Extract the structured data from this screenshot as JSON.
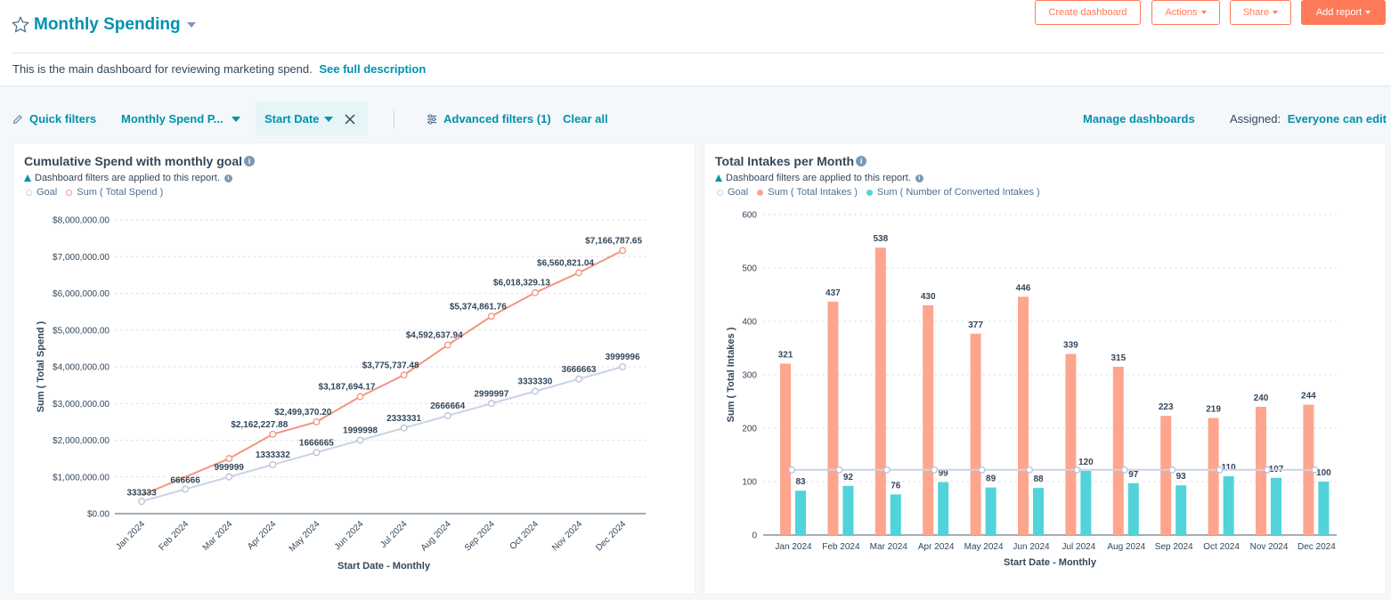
{
  "header": {
    "title": "Monthly Spending",
    "description": "This is the main dashboard for reviewing marketing spend.",
    "see_full_description": "See full description",
    "buttons": {
      "create_dashboard": "Create dashboard",
      "actions": "Actions",
      "share": "Share",
      "add_report": "Add report"
    }
  },
  "filters": {
    "quick_filters": "Quick filters",
    "monthly_spend": "Monthly Spend P...",
    "start_date": "Start Date",
    "advanced_filters": "Advanced filters (1)",
    "clear_all": "Clear all",
    "manage_dashboards": "Manage dashboards",
    "assigned_label": "Assigned:",
    "assigned_value": "Everyone can edit"
  },
  "colors": {
    "accent": "#0091ae",
    "orange": "#ff7a59",
    "spend_line": "#f2957f",
    "goal_line": "#cbd3e6",
    "intakes_bar": "#fea58e",
    "converted_bar": "#51d3d9"
  },
  "cards": {
    "left": {
      "title": "Cumulative Spend with monthly goal",
      "notice": "Dashboard filters are applied to this report.",
      "legend": [
        "Goal",
        "Sum ( Total Spend )"
      ]
    },
    "right": {
      "title": "Total Intakes per Month",
      "notice": "Dashboard filters are applied to this report.",
      "legend": [
        "Goal",
        "Sum ( Total Intakes )",
        "Sum ( Number of Converted Intakes )"
      ]
    }
  },
  "chart_data": [
    {
      "type": "line",
      "title": "Cumulative Spend with monthly goal",
      "xlabel": "Start Date - Monthly",
      "ylabel": "Sum ( Total Spend )",
      "ylim": [
        0,
        8000000
      ],
      "yticks": [
        "$0.00",
        "$1,000,000.00",
        "$2,000,000.00",
        "$3,000,000.00",
        "$4,000,000.00",
        "$5,000,000.00",
        "$6,000,000.00",
        "$7,000,000.00",
        "$8,000,000.00"
      ],
      "categories": [
        "Jan 2024",
        "Feb 2024",
        "Mar 2024",
        "Apr 2024",
        "May 2024",
        "Jun 2024",
        "Jul 2024",
        "Aug 2024",
        "Sep 2024",
        "Oct 2024",
        "Nov 2024",
        "Dec 2024"
      ],
      "series": [
        {
          "name": "Goal",
          "values": [
            333333,
            666666,
            999999,
            1333332,
            1666665,
            1999998,
            2333331,
            2666664,
            2999997,
            3333330,
            3666663,
            3999996
          ],
          "labels": [
            "333333",
            "666666",
            "999999",
            "1333332",
            "1666665",
            "1999998",
            "2333331",
            "2666664",
            "2999997",
            "3333330",
            "3666663",
            "3999996"
          ]
        },
        {
          "name": "Sum ( Total Spend )",
          "values": [
            null,
            null,
            1500000,
            2162227.88,
            2499370.2,
            3187694.17,
            3775737.48,
            4592637.94,
            5374861.76,
            6018329.13,
            6560821.04,
            7166787.65
          ],
          "line_start": 500000,
          "labels": [
            "",
            "",
            "",
            "$2,162,227.88",
            "$2,499,370.20",
            "$3,187,694.17",
            "$3,775,737.48",
            "$4,592,637.94",
            "$5,374,861.76",
            "$6,018,329.13",
            "$6,560,821.04",
            "$7,166,787.65"
          ]
        }
      ]
    },
    {
      "type": "bar",
      "title": "Total Intakes per Month",
      "xlabel": "Start Date - Monthly",
      "ylabel": "Sum ( Total Intakes )",
      "ylim": [
        0,
        600
      ],
      "yticks": [
        "0",
        "100",
        "200",
        "300",
        "400",
        "500",
        "600"
      ],
      "categories": [
        "Jan 2024",
        "Feb 2024",
        "Mar 2024",
        "Apr 2024",
        "May 2024",
        "Jun 2024",
        "Jul 2024",
        "Aug 2024",
        "Sep 2024",
        "Oct 2024",
        "Nov 2024",
        "Dec 2024"
      ],
      "series": [
        {
          "name": "Sum ( Total Intakes )",
          "values": [
            321,
            437,
            538,
            430,
            377,
            446,
            339,
            315,
            223,
            219,
            240,
            244
          ]
        },
        {
          "name": "Sum ( Number of Converted Intakes )",
          "values": [
            83,
            92,
            76,
            99,
            89,
            88,
            120,
            97,
            93,
            110,
            107,
            100
          ]
        },
        {
          "name": "Goal",
          "values": [
            122,
            122,
            122,
            122,
            122,
            122,
            122,
            122,
            122,
            122,
            122,
            122
          ]
        }
      ]
    }
  ]
}
